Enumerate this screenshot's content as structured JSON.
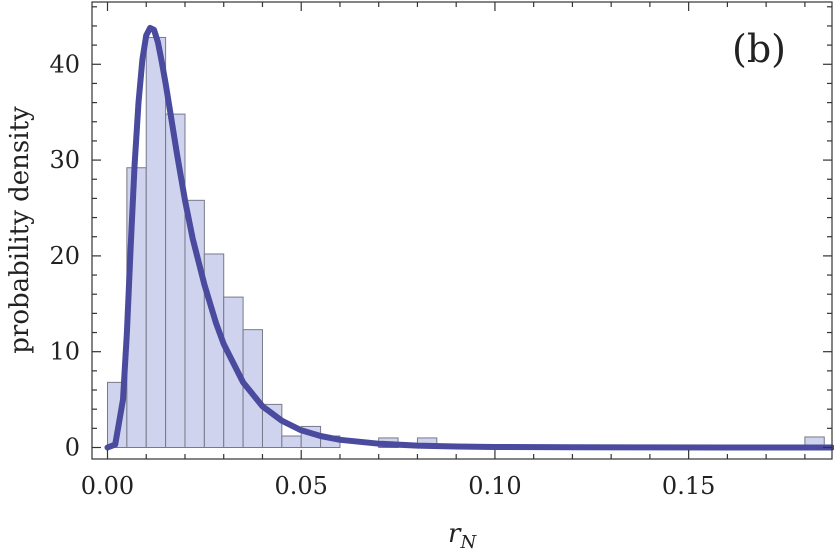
{
  "chart_data": {
    "type": "histogram",
    "panel_label": "(b)",
    "xlabel_base": "r",
    "xlabel_sub": "N",
    "ylabel": "probability density",
    "xlim": [
      -0.004,
      0.187
    ],
    "ylim": [
      -1.2,
      46.5
    ],
    "x_ticks": [
      0.0,
      0.05,
      0.1,
      0.15
    ],
    "x_tick_labels": [
      "0.00",
      "0.05",
      "0.10",
      "0.15"
    ],
    "y_ticks": [
      0,
      10,
      20,
      30,
      40
    ],
    "y_tick_labels": [
      "0",
      "10",
      "20",
      "30",
      "40"
    ],
    "bin_width": 0.005,
    "bars": [
      {
        "x0": 0.0,
        "value": 6.8
      },
      {
        "x0": 0.005,
        "value": 29.2
      },
      {
        "x0": 0.01,
        "value": 42.8
      },
      {
        "x0": 0.015,
        "value": 34.8
      },
      {
        "x0": 0.02,
        "value": 25.8
      },
      {
        "x0": 0.025,
        "value": 20.2
      },
      {
        "x0": 0.03,
        "value": 15.7
      },
      {
        "x0": 0.035,
        "value": 12.3
      },
      {
        "x0": 0.04,
        "value": 4.5
      },
      {
        "x0": 0.045,
        "value": 1.2
      },
      {
        "x0": 0.05,
        "value": 2.2
      },
      {
        "x0": 0.055,
        "value": 1.2
      },
      {
        "x0": 0.07,
        "value": 1.0
      },
      {
        "x0": 0.08,
        "value": 1.0
      },
      {
        "x0": 0.18,
        "value": 1.1
      }
    ],
    "fit_curve": {
      "x": [
        0.0,
        0.002,
        0.004,
        0.005,
        0.006,
        0.007,
        0.008,
        0.009,
        0.01,
        0.011,
        0.012,
        0.013,
        0.014,
        0.015,
        0.016,
        0.018,
        0.02,
        0.022,
        0.025,
        0.028,
        0.03,
        0.035,
        0.04,
        0.045,
        0.05,
        0.055,
        0.06,
        0.07,
        0.08,
        0.09,
        0.1,
        0.12,
        0.14,
        0.16,
        0.187
      ],
      "y": [
        0.0,
        0.3,
        5.0,
        12.0,
        21.0,
        29.5,
        36.0,
        40.5,
        43.0,
        43.8,
        43.6,
        42.3,
        40.3,
        38.0,
        35.5,
        30.5,
        25.8,
        21.8,
        17.0,
        13.0,
        10.8,
        6.8,
        4.3,
        2.8,
        1.8,
        1.2,
        0.8,
        0.4,
        0.2,
        0.1,
        0.05,
        0.02,
        0.01,
        0.0,
        0.0
      ]
    }
  }
}
